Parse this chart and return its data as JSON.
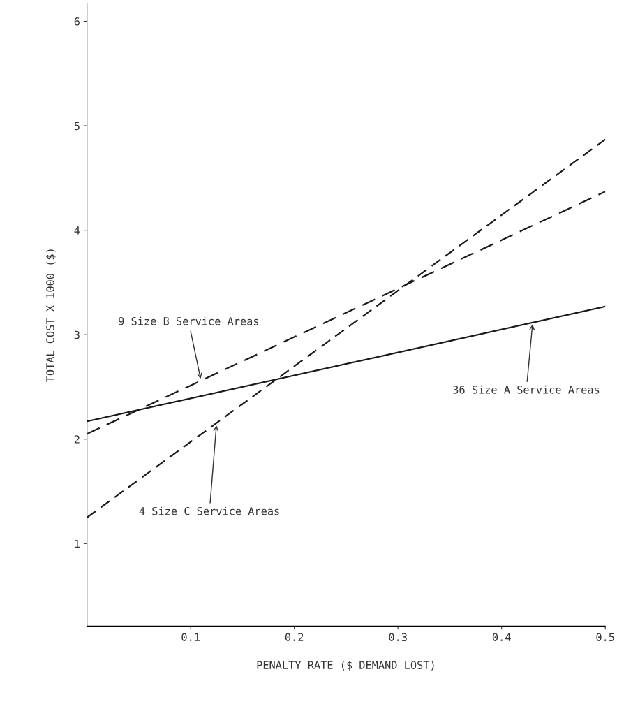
{
  "chart_data": {
    "type": "line",
    "xlabel": "PENALTY RATE ($ DEMAND LOST)",
    "ylabel": "TOTAL COST X 1000 ($)",
    "x": [
      0,
      0.5
    ],
    "series": [
      {
        "color": "#1a1a1a",
        "values": [
          2.17,
          3.27
        ],
        "line_style": "solid"
      },
      {
        "color": "#1a1a1a",
        "values": [
          2.05,
          4.37
        ],
        "line_style": "dashed"
      },
      {
        "color": "#1a1a1a",
        "values": [
          1.25,
          4.87
        ],
        "line_style": "dashdot"
      }
    ],
    "annotations": [
      {
        "text": "9 Size B Service Areas",
        "x": 0.11,
        "y": 2.56
      },
      {
        "text": "36 Size A Service Areas",
        "x": 0.43,
        "y": 3.12
      },
      {
        "text": "4 Size C Service Areas",
        "x": 0.125,
        "y": 2.15
      }
    ],
    "xlim": [
      0,
      0.5
    ],
    "ylim": [
      0.21,
      6.17
    ],
    "xticks": [
      0.1,
      0.2,
      0.3,
      0.4,
      0.5
    ],
    "yticks": [
      1,
      2,
      3,
      4,
      5,
      6
    ],
    "grid": false,
    "legend": false,
    "marker": "none"
  }
}
